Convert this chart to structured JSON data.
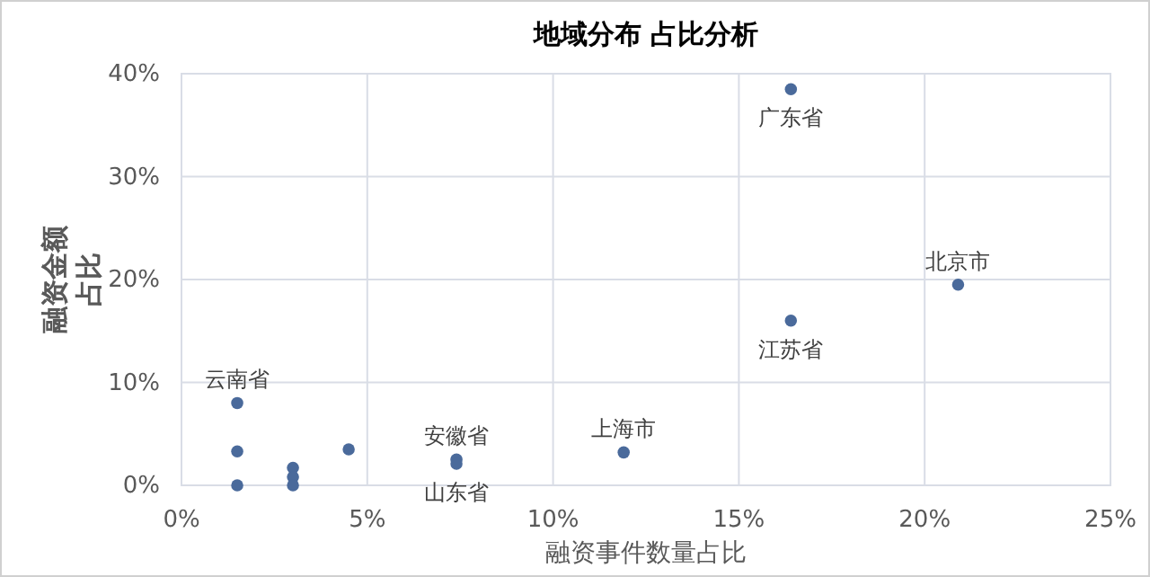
{
  "chart_data": {
    "type": "scatter",
    "title": "地域分布 占比分析",
    "xlabel": "融资事件数量占比",
    "ylabel": "融资金额占比",
    "x": [
      16.4,
      20.9,
      16.4,
      1.5,
      1.5,
      1.5,
      3.0,
      3.0,
      3.0,
      4.5,
      7.4,
      7.4,
      11.9
    ],
    "values": [
      38.5,
      19.5,
      16.0,
      8.0,
      3.3,
      0,
      1.7,
      0.8,
      0,
      3.5,
      2.5,
      2.1,
      3.2
    ],
    "color": "#4a6a9b",
    "marker": "circle",
    "grid": true,
    "xlim": [
      0,
      25
    ],
    "xticks": [
      {
        "value": 0,
        "label": "0%"
      },
      {
        "value": 5,
        "label": "5%"
      },
      {
        "value": 10,
        "label": "10%"
      },
      {
        "value": 15,
        "label": "15%"
      },
      {
        "value": 20,
        "label": "20%"
      },
      {
        "value": 25,
        "label": "25%"
      }
    ],
    "ylim": [
      0,
      40
    ],
    "yticks": [
      {
        "value": 0,
        "label": "0%"
      },
      {
        "value": 10,
        "label": "10%"
      },
      {
        "value": 20,
        "label": "20%"
      },
      {
        "value": 30,
        "label": "30%"
      },
      {
        "value": 40,
        "label": "40%"
      }
    ],
    "annotations": [
      {
        "text": "广东省",
        "x": 16.4,
        "y": 38.5
      },
      {
        "text": "北京市",
        "x": 20.9,
        "y": 19.5
      },
      {
        "text": "江苏省",
        "x": 16.4,
        "y": 16.0
      },
      {
        "text": "云南省",
        "x": 1.5,
        "y": 8.0
      },
      {
        "text": "安徽省",
        "x": 7.4,
        "y": 2.5
      },
      {
        "text": "山东省",
        "x": 7.4,
        "y": 2.1
      },
      {
        "text": "上海市",
        "x": 11.9,
        "y": 3.2
      }
    ]
  }
}
